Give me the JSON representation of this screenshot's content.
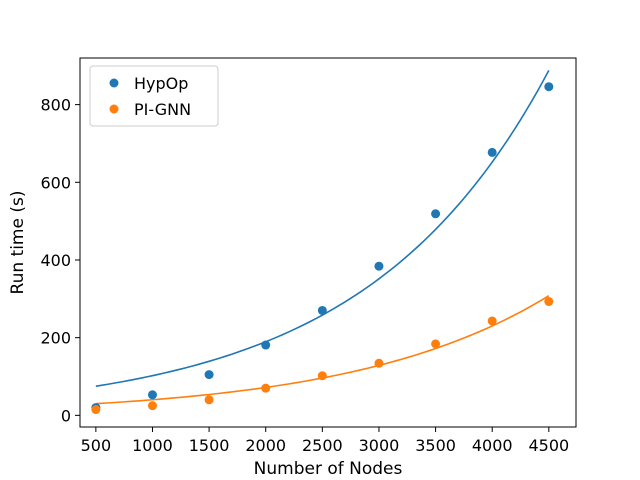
{
  "chart_data": {
    "type": "scatter",
    "xlabel": "Number of Nodes",
    "ylabel": "Run time (s)",
    "xlim": [
      360,
      4740
    ],
    "ylim": [
      -30,
      920
    ],
    "xticks": [
      500,
      1000,
      1500,
      2000,
      2500,
      3000,
      3500,
      4000,
      4500
    ],
    "yticks": [
      0,
      200,
      400,
      600,
      800
    ],
    "legend_position": "top-left",
    "grid": false,
    "series": [
      {
        "name": "HypOp",
        "color": "#1f77b4",
        "x": [
          500,
          1000,
          1500,
          2000,
          2500,
          3000,
          3500,
          4000,
          4500
        ],
        "y": [
          20,
          53,
          105,
          181,
          270,
          384,
          519,
          677,
          846
        ],
        "fit": {
          "type": "exponential",
          "x": [
            500,
            4500
          ],
          "y": [
            75,
            888
          ]
        }
      },
      {
        "name": "PI-GNN",
        "color": "#ff7f0e",
        "x": [
          500,
          1000,
          1500,
          2000,
          2500,
          3000,
          3500,
          4000,
          4500
        ],
        "y": [
          15,
          25,
          40,
          70,
          102,
          134,
          184,
          243,
          293
        ],
        "fit": {
          "type": "exponential",
          "x": [
            500,
            4500
          ],
          "y": [
            30,
            308
          ]
        }
      }
    ]
  }
}
